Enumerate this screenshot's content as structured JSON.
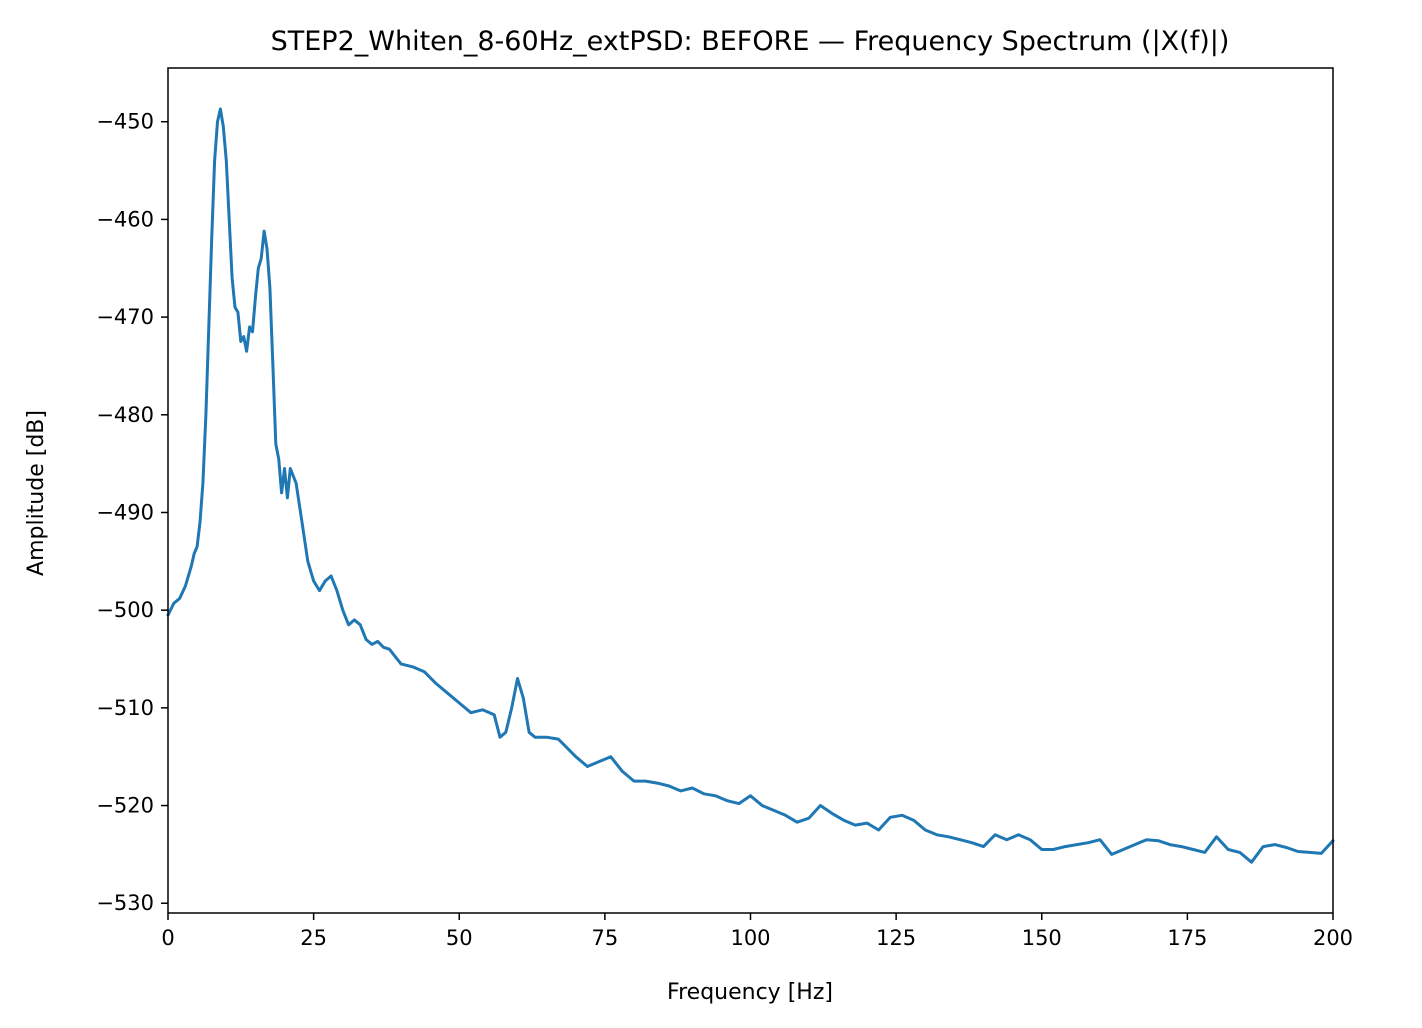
{
  "chart_data": {
    "type": "line",
    "title": "STEP2_Whiten_8-60Hz_extPSD: BEFORE — Frequency Spectrum (|X(f)|)",
    "xlabel": "Frequency [Hz]",
    "ylabel": "Amplitude [dB]",
    "xlim": [
      0,
      200
    ],
    "ylim": [
      -531,
      -444.5
    ],
    "xticks": [
      0,
      25,
      50,
      75,
      100,
      125,
      150,
      175,
      200
    ],
    "yticks": [
      -530,
      -520,
      -510,
      -500,
      -490,
      -480,
      -470,
      -460,
      -450
    ],
    "xtick_labels": [
      "0",
      "25",
      "50",
      "75",
      "100",
      "125",
      "150",
      "175",
      "200"
    ],
    "ytick_labels": [
      "−530",
      "−520",
      "−510",
      "−500",
      "−490",
      "−480",
      "−470",
      "−460",
      "−450"
    ],
    "grid": false,
    "line_color": "#1f77b4",
    "series": [
      {
        "x": [
          0,
          1,
          2,
          3,
          4,
          4.5,
          5,
          5.5,
          6,
          6.5,
          7,
          7.5,
          8,
          8.5,
          9,
          9.5,
          10,
          10.5,
          11,
          11.5,
          12,
          12.5,
          13,
          13.5,
          14,
          14.5,
          15,
          15.5,
          16,
          16.5,
          17,
          17.5,
          18,
          18.5,
          19,
          19.5,
          20,
          20.5,
          21,
          22,
          23,
          24,
          25,
          26,
          27,
          28,
          29,
          30,
          31,
          32,
          33,
          34,
          35,
          36,
          37,
          38,
          40,
          42,
          44,
          46,
          48,
          50,
          52,
          54,
          56,
          57,
          58,
          59,
          60,
          61,
          62,
          63,
          65,
          67,
          70,
          72,
          74,
          76,
          78,
          80,
          82,
          84,
          86,
          88,
          90,
          92,
          94,
          96,
          98,
          100,
          102,
          104,
          106,
          108,
          110,
          112,
          114,
          116,
          118,
          120,
          122,
          124,
          126,
          128,
          130,
          132,
          134,
          136,
          138,
          140,
          142,
          144,
          146,
          148,
          150,
          152,
          154,
          156,
          158,
          160,
          162,
          164,
          166,
          168,
          170,
          172,
          174,
          176,
          178,
          180,
          182,
          184,
          186,
          188,
          190,
          192,
          194,
          196,
          198,
          200
        ],
        "y": [
          -500.5,
          -499.3,
          -498.8,
          -497.5,
          -495.5,
          -494.2,
          -493.5,
          -491,
          -487,
          -480,
          -471,
          -462,
          -454,
          -450,
          -448.7,
          -450.5,
          -454,
          -460,
          -466,
          -469,
          -469.5,
          -472.5,
          -472,
          -473.5,
          -471,
          -471.5,
          -468,
          -465,
          -464,
          -461.2,
          -463,
          -467,
          -475,
          -483,
          -484.5,
          -488,
          -485.5,
          -488.5,
          -485.5,
          -487,
          -491,
          -495,
          -497,
          -498,
          -497,
          -496.5,
          -498,
          -500,
          -501.5,
          -501,
          -501.5,
          -503,
          -503.5,
          -503.2,
          -503.8,
          -504,
          -505.5,
          -505.8,
          -506.3,
          -507.5,
          -508.5,
          -509.5,
          -510.5,
          -510.2,
          -510.7,
          -513,
          -512.5,
          -510,
          -507,
          -509,
          -512.5,
          -513,
          -513,
          -513.2,
          -515,
          -516,
          -515.5,
          -515,
          -516.5,
          -517.5,
          -517.5,
          -517.7,
          -518,
          -518.5,
          -518.2,
          -518.8,
          -519,
          -519.5,
          -519.8,
          -519,
          -520,
          -520.5,
          -521,
          -521.7,
          -521.3,
          -520,
          -520.8,
          -521.5,
          -522,
          -521.8,
          -522.5,
          -521.2,
          -521,
          -521.5,
          -522.5,
          -523,
          -523.2,
          -523.5,
          -523.8,
          -524.2,
          -523,
          -523.5,
          -523,
          -523.5,
          -524.5,
          -524.5,
          -524.2,
          -524,
          -523.8,
          -523.5,
          -525,
          -524.5,
          -524,
          -523.5,
          -523.6,
          -524,
          -524.2,
          -524.5,
          -524.8,
          -523.2,
          -524.5,
          -524.8,
          -525.8,
          -524.2,
          -524,
          -524.3,
          -524.7,
          -524.8,
          -524.9,
          -523.6
        ]
      }
    ]
  }
}
